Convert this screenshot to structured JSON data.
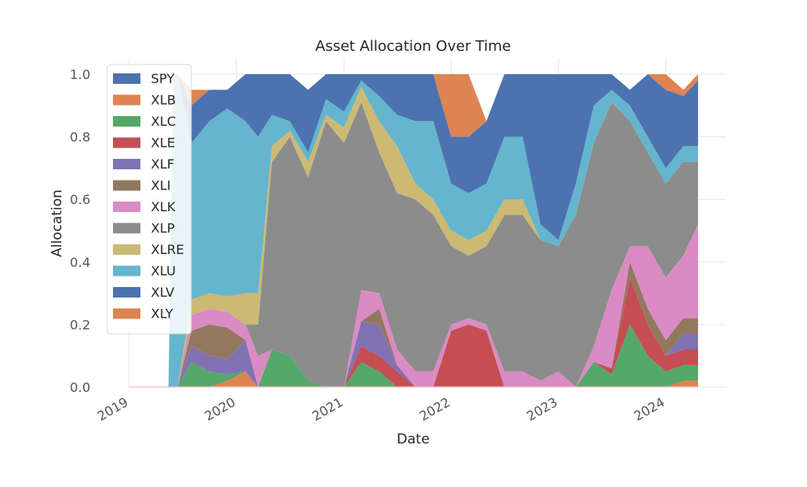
{
  "chart_data": {
    "type": "area",
    "stacked": true,
    "title": "Asset Allocation Over Time",
    "xlabel": "Date",
    "ylabel": "Allocation",
    "xlim": [
      "2019-01-01",
      "2024-04-20"
    ],
    "ylim": [
      0,
      1.0
    ],
    "x_ticks": [
      "2019-01-01",
      "2020-01-01",
      "2021-01-01",
      "2022-01-01",
      "2023-01-01",
      "2024-01-01"
    ],
    "x_tick_labels": [
      "2019",
      "2020",
      "2021",
      "2022",
      "2023",
      "2024"
    ],
    "y_ticks": [
      0.0,
      0.2,
      0.4,
      0.6,
      0.8,
      1.0
    ],
    "y_tick_labels": [
      "0.0",
      "0.2",
      "0.4",
      "0.6",
      "0.8",
      "1.0"
    ],
    "grid": true,
    "legend_position": "top-left",
    "x": [
      "2019-01-01",
      "2019-05-15",
      "2019-06-01",
      "2019-06-15",
      "2019-08-01",
      "2019-10-01",
      "2019-12-01",
      "2020-02-01",
      "2020-03-15",
      "2020-05-01",
      "2020-07-01",
      "2020-09-01",
      "2020-11-01",
      "2021-01-01",
      "2021-03-01",
      "2021-05-01",
      "2021-07-01",
      "2021-09-01",
      "2021-11-01",
      "2022-01-01",
      "2022-03-01",
      "2022-05-01",
      "2022-07-01",
      "2022-09-01",
      "2022-11-01",
      "2023-01-01",
      "2023-03-01",
      "2023-05-01",
      "2023-07-01",
      "2023-09-01",
      "2023-11-01",
      "2024-01-01",
      "2024-03-01",
      "2024-04-20"
    ],
    "series": [
      {
        "name": "SPY",
        "color": "#4c72b0",
        "values": [
          0,
          0,
          0,
          0,
          0,
          0,
          0,
          0,
          0,
          0,
          0,
          0,
          0,
          0,
          0,
          0,
          0,
          0,
          0,
          0,
          0,
          0,
          0,
          0,
          0,
          0,
          0,
          0,
          0,
          0,
          0,
          0,
          0,
          0
        ]
      },
      {
        "name": "XLB",
        "color": "#dd8452",
        "values": [
          0,
          0,
          0,
          0,
          0,
          0,
          0.02,
          0.05,
          0,
          0,
          0,
          0,
          0,
          0,
          0,
          0,
          0,
          0,
          0,
          0,
          0,
          0,
          0,
          0,
          0,
          0,
          0,
          0,
          0,
          0,
          0,
          0,
          0.02,
          0.02
        ]
      },
      {
        "name": "XLC",
        "color": "#55a868",
        "values": [
          0,
          0,
          0,
          0,
          0.08,
          0.05,
          0.02,
          0,
          0,
          0.12,
          0.1,
          0.02,
          0,
          0,
          0.08,
          0.05,
          0,
          0,
          0,
          0,
          0,
          0,
          0,
          0,
          0,
          0,
          0,
          0.08,
          0.04,
          0.2,
          0.1,
          0.05,
          0.05,
          0.05
        ]
      },
      {
        "name": "XLE",
        "color": "#c44e52",
        "values": [
          0,
          0,
          0,
          0,
          0,
          0,
          0,
          0,
          0,
          0,
          0,
          0,
          0,
          0,
          0.05,
          0.05,
          0.05,
          0,
          0,
          0.18,
          0.2,
          0.18,
          0,
          0,
          0,
          0,
          0,
          0,
          0.02,
          0.15,
          0.1,
          0.05,
          0.05,
          0.05
        ]
      },
      {
        "name": "XLF",
        "color": "#8172b3",
        "values": [
          0,
          0,
          0,
          0,
          0.05,
          0.05,
          0.05,
          0.1,
          0,
          0,
          0,
          0,
          0,
          0,
          0.08,
          0.1,
          0.02,
          0,
          0,
          0,
          0,
          0,
          0,
          0,
          0,
          0,
          0,
          0,
          0,
          0,
          0,
          0,
          0.05,
          0.05
        ]
      },
      {
        "name": "XLI",
        "color": "#937860",
        "values": [
          0,
          0,
          0,
          0,
          0.05,
          0.1,
          0.1,
          0,
          0,
          0,
          0,
          0,
          0,
          0,
          0,
          0.05,
          0,
          0,
          0,
          0,
          0,
          0,
          0,
          0,
          0,
          0,
          0,
          0,
          0,
          0.05,
          0.05,
          0.05,
          0.05,
          0.05
        ]
      },
      {
        "name": "XLK",
        "color": "#da8bc3",
        "values": [
          0,
          0,
          0,
          0,
          0.05,
          0.05,
          0.05,
          0.05,
          0.1,
          0,
          0,
          0,
          0,
          0,
          0.1,
          0.05,
          0.05,
          0.05,
          0.05,
          0.02,
          0.02,
          0.02,
          0.05,
          0.05,
          0.02,
          0.05,
          0,
          0.05,
          0.25,
          0.05,
          0.2,
          0.2,
          0.2,
          0.3
        ]
      },
      {
        "name": "XLP",
        "color": "#8c8c8c",
        "values": [
          0,
          0,
          0,
          0,
          0,
          0,
          0,
          0,
          0.1,
          0.6,
          0.7,
          0.65,
          0.85,
          0.78,
          0.6,
          0.45,
          0.5,
          0.55,
          0.5,
          0.25,
          0.2,
          0.25,
          0.5,
          0.5,
          0.45,
          0.4,
          0.55,
          0.65,
          0.6,
          0.4,
          0.3,
          0.3,
          0.3,
          0.2
        ]
      },
      {
        "name": "XLRE",
        "color": "#ccb974",
        "values": [
          0,
          0,
          0,
          0,
          0.05,
          0.05,
          0.05,
          0.1,
          0.1,
          0.05,
          0.02,
          0.05,
          0.02,
          0.05,
          0.05,
          0.1,
          0.15,
          0.05,
          0.05,
          0.05,
          0.05,
          0.05,
          0.05,
          0.05,
          0,
          0,
          0,
          0,
          0,
          0,
          0,
          0,
          0,
          0
        ]
      },
      {
        "name": "XLU",
        "color": "#64b5cd",
        "values": [
          0,
          0,
          1,
          1,
          0.5,
          0.55,
          0.6,
          0.55,
          0.5,
          0.1,
          0.03,
          0.03,
          0.05,
          0.05,
          0.02,
          0.08,
          0.1,
          0.2,
          0.25,
          0.15,
          0.15,
          0.15,
          0.2,
          0.2,
          0.05,
          0.02,
          0.1,
          0.12,
          0.04,
          0.05,
          0.05,
          0.05,
          0.05,
          0.05
        ]
      },
      {
        "name": "XLV",
        "color": "#4c72b0",
        "values": [
          0,
          0,
          0,
          0,
          0.12,
          0.1,
          0.06,
          0.15,
          0.2,
          0.13,
          0.15,
          0.2,
          0.08,
          0.12,
          0.02,
          0.07,
          0.13,
          0.15,
          0.15,
          0.15,
          0.18,
          0.2,
          0.2,
          0.2,
          0.48,
          0.53,
          0.35,
          0.1,
          0.05,
          0.05,
          0.2,
          0.25,
          0.16,
          0.21
        ]
      },
      {
        "name": "XLY",
        "color": "#dd8452",
        "values": [
          0,
          0,
          0,
          0,
          0.05,
          0,
          0,
          0,
          0,
          0,
          0,
          0,
          0,
          0,
          0,
          0,
          0,
          0,
          0,
          0.2,
          0.2,
          0,
          0,
          0,
          0,
          0,
          0,
          0,
          0,
          0,
          0,
          0.05,
          0.02,
          0.02
        ]
      }
    ]
  }
}
